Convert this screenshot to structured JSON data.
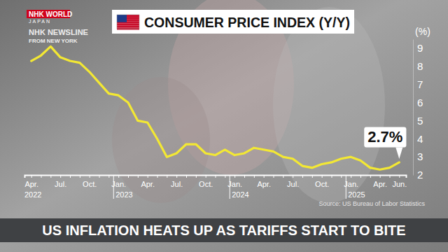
{
  "chart_data": {
    "type": "line",
    "title": "CONSUMER PRICE INDEX (Y/Y)",
    "y_label": "(%)",
    "caption": "US INFLATION HEATS UP AS TARIFFS START TO BITE",
    "source": "Source: US Bureau of Labor Statistics",
    "overlay_texts": [
      "NHK WORLD",
      "JAPAN",
      "NHK NEWSLINE",
      "FROM NEW YORK"
    ],
    "categories": [
      "Apr.",
      null,
      null,
      "Jul.",
      null,
      null,
      "Oct.",
      null,
      null,
      "Jan.",
      null,
      null,
      "Apr.",
      null,
      null,
      "Jul.",
      null,
      null,
      "Oct.",
      null,
      null,
      "Jan.",
      null,
      null,
      "Apr.",
      null,
      null,
      "Jul.",
      null,
      null,
      "Oct.",
      null,
      null,
      "Jan.",
      null,
      null,
      "Apr.",
      null,
      "Jun."
    ],
    "category_groups": [
      "2022",
      null,
      null,
      null,
      null,
      null,
      null,
      null,
      null,
      "2023",
      null,
      null,
      null,
      null,
      null,
      null,
      null,
      null,
      null,
      null,
      null,
      "2024",
      null,
      null,
      null,
      null,
      null,
      null,
      null,
      null,
      null,
      null,
      null,
      "2025",
      null,
      null,
      null,
      null,
      null
    ],
    "values": [
      8.3,
      8.6,
      9.1,
      8.5,
      8.3,
      8.2,
      7.7,
      7.1,
      6.5,
      6.4,
      6.0,
      5.0,
      4.9,
      4.0,
      3.0,
      3.2,
      3.7,
      3.7,
      3.2,
      3.1,
      3.4,
      3.1,
      3.2,
      3.5,
      3.4,
      3.3,
      3.0,
      2.9,
      2.5,
      2.4,
      2.6,
      2.7,
      2.9,
      3.0,
      2.8,
      2.4,
      2.3,
      2.4,
      2.7
    ],
    "value_labels": [
      null,
      null,
      null,
      null,
      null,
      null,
      null,
      null,
      null,
      null,
      null,
      null,
      null,
      null,
      null,
      null,
      null,
      null,
      null,
      null,
      null,
      null,
      null,
      null,
      null,
      null,
      null,
      null,
      null,
      null,
      null,
      null,
      null,
      null,
      null,
      null,
      null,
      null,
      "2.7%"
    ],
    "data_labels": true,
    "color": "#f3e833",
    "ylim": [
      2,
      9.5
    ],
    "yticks": [
      2,
      3,
      4,
      5,
      6,
      7,
      8,
      9
    ],
    "grid": false
  }
}
